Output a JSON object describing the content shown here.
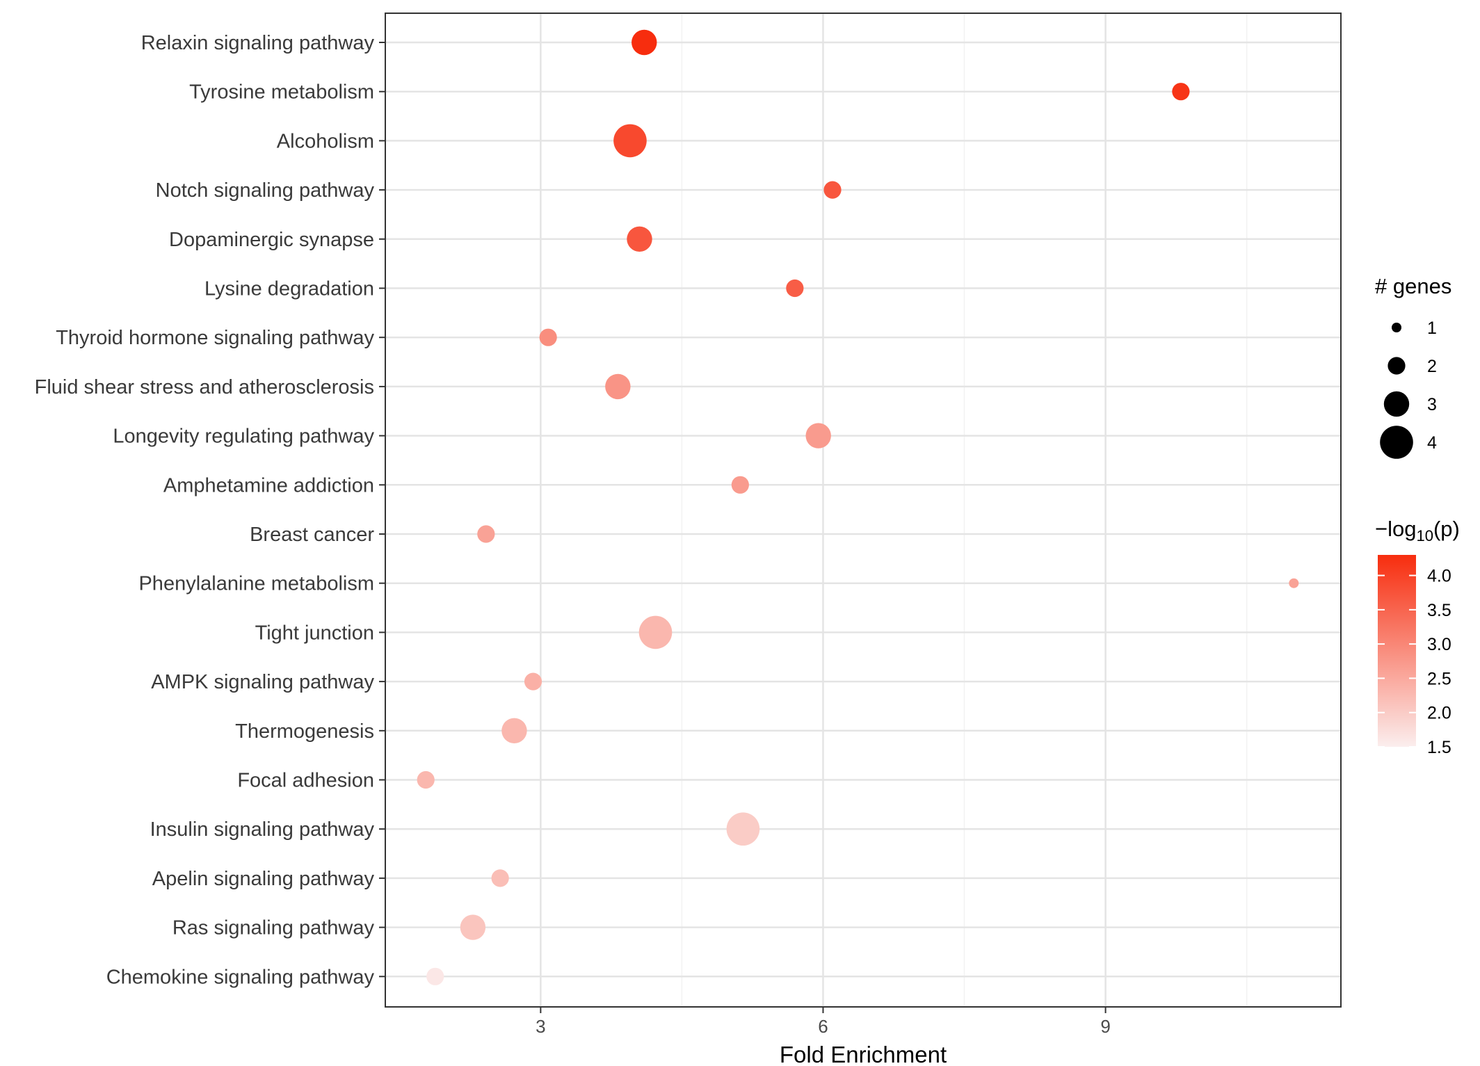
{
  "chart_data": {
    "type": "scatter",
    "xlabel": "Fold Enrichment",
    "ylabel": "",
    "xlim": [
      1.35,
      11.5
    ],
    "xticks": [
      3,
      6,
      9
    ],
    "x_minor_grid": [
      4.5,
      7.5,
      10.5
    ],
    "grid": true,
    "categories": [
      "Relaxin signaling pathway",
      "Tyrosine metabolism",
      "Alcoholism",
      "Notch signaling pathway",
      "Dopaminergic synapse",
      "Lysine degradation",
      "Thyroid hormone signaling pathway",
      "Fluid shear stress and atherosclerosis",
      "Longevity regulating pathway",
      "Amphetamine addiction",
      "Breast cancer",
      "Phenylalanine metabolism",
      "Tight junction",
      "AMPK signaling pathway",
      "Thermogenesis",
      "Focal adhesion",
      "Insulin signaling pathway",
      "Apelin signaling pathway",
      "Ras signaling pathway",
      "Chemokine signaling pathway"
    ],
    "points": [
      {
        "category": "Relaxin signaling pathway",
        "fold_enrichment": 4.1,
        "genes": 3,
        "neg_log10_p": 4.3
      },
      {
        "category": "Tyrosine metabolism",
        "fold_enrichment": 9.8,
        "genes": 2,
        "neg_log10_p": 4.2
      },
      {
        "category": "Alcoholism",
        "fold_enrichment": 3.95,
        "genes": 4,
        "neg_log10_p": 3.9
      },
      {
        "category": "Notch signaling pathway",
        "fold_enrichment": 6.1,
        "genes": 2,
        "neg_log10_p": 3.7
      },
      {
        "category": "Dopaminergic synapse",
        "fold_enrichment": 4.05,
        "genes": 3,
        "neg_log10_p": 3.7
      },
      {
        "category": "Lysine degradation",
        "fold_enrichment": 5.7,
        "genes": 2,
        "neg_log10_p": 3.6
      },
      {
        "category": "Thyroid hormone signaling pathway",
        "fold_enrichment": 3.08,
        "genes": 2,
        "neg_log10_p": 2.9
      },
      {
        "category": "Fluid shear stress and atherosclerosis",
        "fold_enrichment": 3.82,
        "genes": 3,
        "neg_log10_p": 2.8
      },
      {
        "category": "Longevity regulating pathway",
        "fold_enrichment": 5.95,
        "genes": 3,
        "neg_log10_p": 2.7
      },
      {
        "category": "Amphetamine addiction",
        "fold_enrichment": 5.12,
        "genes": 2,
        "neg_log10_p": 2.7
      },
      {
        "category": "Breast cancer",
        "fold_enrichment": 2.42,
        "genes": 2,
        "neg_log10_p": 2.6
      },
      {
        "category": "Phenylalanine metabolism",
        "fold_enrichment": 11.0,
        "genes": 1,
        "neg_log10_p": 2.6
      },
      {
        "category": "Tight junction",
        "fold_enrichment": 4.22,
        "genes": 4,
        "neg_log10_p": 2.3
      },
      {
        "category": "AMPK signaling pathway",
        "fold_enrichment": 2.92,
        "genes": 2,
        "neg_log10_p": 2.4
      },
      {
        "category": "Thermogenesis",
        "fold_enrichment": 2.72,
        "genes": 3,
        "neg_log10_p": 2.3
      },
      {
        "category": "Focal adhesion",
        "fold_enrichment": 1.78,
        "genes": 2,
        "neg_log10_p": 2.3
      },
      {
        "category": "Insulin signaling pathway",
        "fold_enrichment": 5.15,
        "genes": 4,
        "neg_log10_p": 2.0
      },
      {
        "category": "Apelin signaling pathway",
        "fold_enrichment": 2.57,
        "genes": 2,
        "neg_log10_p": 2.2
      },
      {
        "category": "Ras signaling pathway",
        "fold_enrichment": 2.28,
        "genes": 3,
        "neg_log10_p": 2.1
      },
      {
        "category": "Chemokine signaling pathway",
        "fold_enrichment": 1.88,
        "genes": 2,
        "neg_log10_p": 1.6
      }
    ],
    "size_legend": {
      "title": "# genes",
      "values": [
        1,
        2,
        3,
        4
      ],
      "labels": [
        "1",
        "2",
        "3",
        "4"
      ]
    },
    "color_legend": {
      "title_prefix": "−log",
      "title_subscript": "10",
      "title_suffix": "(p)",
      "range": [
        1.5,
        4.3
      ],
      "ticks": [
        4.0,
        3.5,
        3.0,
        2.5,
        2.0,
        1.5
      ],
      "tick_labels": [
        "4.0",
        "3.5",
        "3.0",
        "2.5",
        "2.0",
        "1.5"
      ],
      "low_color": "#fbeeee",
      "high_color": "#f72d0e"
    },
    "legend_position": "right"
  }
}
